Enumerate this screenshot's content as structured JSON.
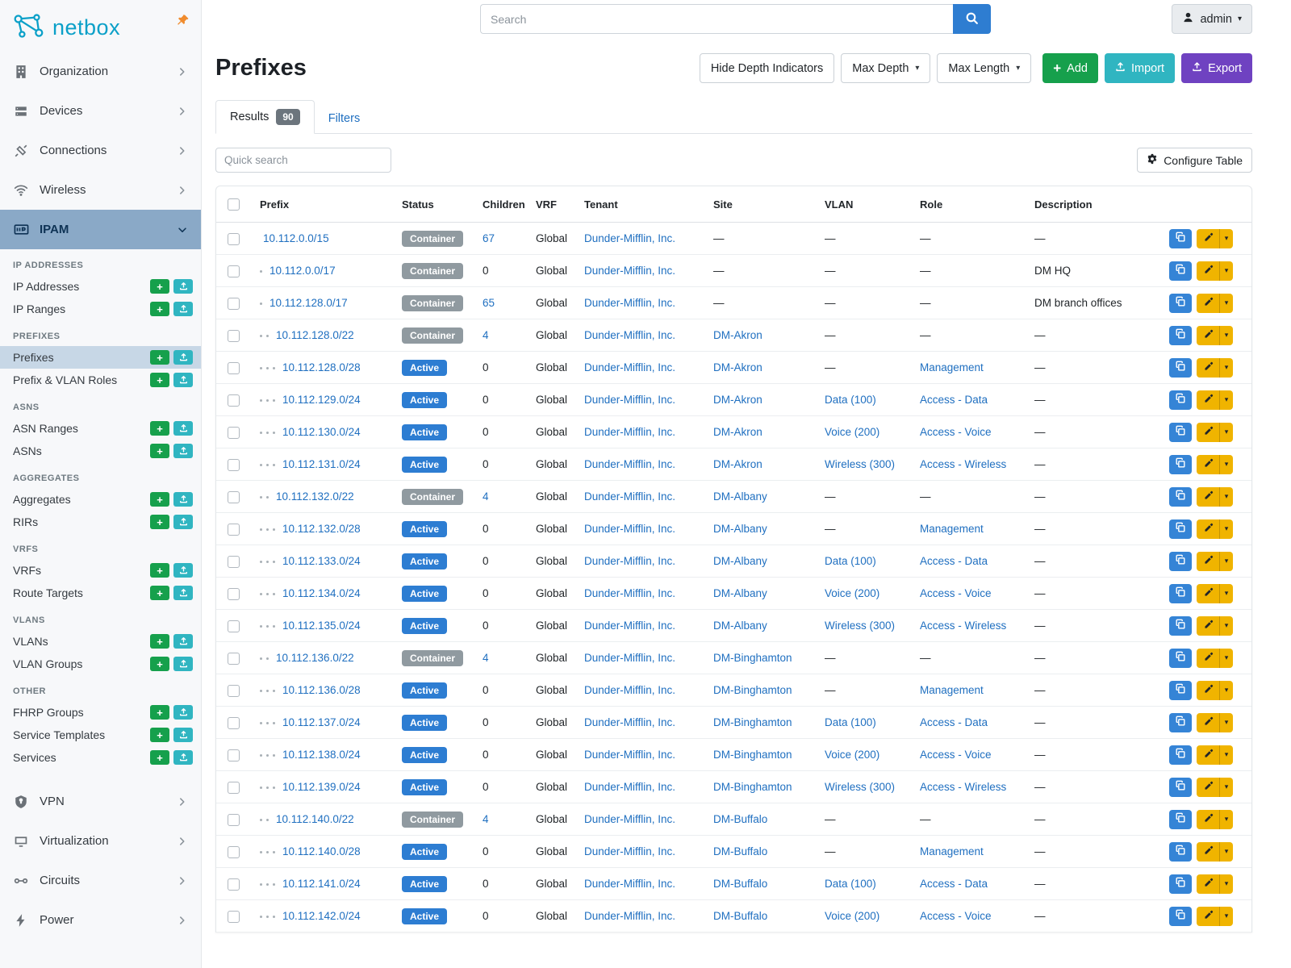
{
  "colors": {
    "brand_teal": "#0ba0c8",
    "pin_orange": "#f08c2e",
    "link_blue": "#1f6fc0",
    "search_btn_blue": "#2e7dd1",
    "status_active": "#2d7dd2",
    "status_container": "#909aa0",
    "btn_add_green": "#16a04c",
    "btn_import_teal": "#30b5c1",
    "btn_export_purple": "#6f42c1",
    "btn_copy_blue": "#3584d6",
    "btn_edit_yellow": "#f0b400",
    "sidebar_active_bg": "#8aa9c7",
    "sidebar_subactive_bg": "#c7d7e6"
  },
  "brand": {
    "name": "netbox",
    "logo_icon": "netbox-logo-icon",
    "pin_icon": "pin-icon"
  },
  "topbar": {
    "search": {
      "placeholder": "Search",
      "icon": "search-icon"
    },
    "user_menu": {
      "label": "admin",
      "icon": "user-icon"
    }
  },
  "sidebar": {
    "top_items": [
      {
        "label": "Organization",
        "icon": "building-icon"
      },
      {
        "label": "Devices",
        "icon": "devices-icon"
      },
      {
        "label": "Connections",
        "icon": "connections-icon"
      },
      {
        "label": "Wireless",
        "icon": "wireless-icon"
      }
    ],
    "active_group": {
      "label": "IPAM",
      "icon": "ipam-icon"
    },
    "sections": [
      {
        "header": "IP ADDRESSES",
        "items": [
          {
            "label": "IP Addresses"
          },
          {
            "label": "IP Ranges"
          }
        ]
      },
      {
        "header": "PREFIXES",
        "items": [
          {
            "label": "Prefixes",
            "active": true
          },
          {
            "label": "Prefix & VLAN Roles"
          }
        ]
      },
      {
        "header": "ASNS",
        "items": [
          {
            "label": "ASN Ranges"
          },
          {
            "label": "ASNs"
          }
        ]
      },
      {
        "header": "AGGREGATES",
        "items": [
          {
            "label": "Aggregates"
          },
          {
            "label": "RIRs"
          }
        ]
      },
      {
        "header": "VRFS",
        "items": [
          {
            "label": "VRFs"
          },
          {
            "label": "Route Targets"
          }
        ]
      },
      {
        "header": "VLANS",
        "items": [
          {
            "label": "VLANs"
          },
          {
            "label": "VLAN Groups"
          }
        ]
      },
      {
        "header": "OTHER",
        "items": [
          {
            "label": "FHRP Groups"
          },
          {
            "label": "Service Templates"
          },
          {
            "label": "Services"
          }
        ]
      }
    ],
    "bottom_items": [
      {
        "label": "VPN",
        "icon": "vpn-icon"
      },
      {
        "label": "Virtualization",
        "icon": "virtualization-icon"
      },
      {
        "label": "Circuits",
        "icon": "circuits-icon"
      },
      {
        "label": "Power",
        "icon": "power-icon"
      }
    ]
  },
  "page": {
    "title": "Prefixes",
    "actions": {
      "hide_depth": "Hide Depth Indicators",
      "max_depth": "Max Depth",
      "max_length": "Max Length",
      "add": "Add",
      "import": "Import",
      "export": "Export"
    },
    "tabs": {
      "results_label": "Results",
      "results_count": "90",
      "filters_label": "Filters"
    },
    "quick_search_placeholder": "Quick search",
    "configure_table_label": "Configure Table"
  },
  "table": {
    "columns": [
      "Prefix",
      "Status",
      "Children",
      "VRF",
      "Tenant",
      "Site",
      "VLAN",
      "Role",
      "Description"
    ],
    "rows": [
      {
        "depth": 0,
        "prefix": "10.112.0.0/15",
        "status": "Container",
        "children": "67",
        "vrf": "Global",
        "tenant": "Dunder-Mifflin, Inc.",
        "site": "",
        "vlan": "",
        "role": "",
        "description": ""
      },
      {
        "depth": 1,
        "prefix": "10.112.0.0/17",
        "status": "Container",
        "children": "0",
        "vrf": "Global",
        "tenant": "Dunder-Mifflin, Inc.",
        "site": "",
        "vlan": "",
        "role": "",
        "description": "DM HQ"
      },
      {
        "depth": 1,
        "prefix": "10.112.128.0/17",
        "status": "Container",
        "children": "65",
        "vrf": "Global",
        "tenant": "Dunder-Mifflin, Inc.",
        "site": "",
        "vlan": "",
        "role": "",
        "description": "DM branch offices"
      },
      {
        "depth": 2,
        "prefix": "10.112.128.0/22",
        "status": "Container",
        "children": "4",
        "vrf": "Global",
        "tenant": "Dunder-Mifflin, Inc.",
        "site": "DM-Akron",
        "vlan": "",
        "role": "",
        "description": ""
      },
      {
        "depth": 3,
        "prefix": "10.112.128.0/28",
        "status": "Active",
        "children": "0",
        "vrf": "Global",
        "tenant": "Dunder-Mifflin, Inc.",
        "site": "DM-Akron",
        "vlan": "",
        "role": "Management",
        "description": ""
      },
      {
        "depth": 3,
        "prefix": "10.112.129.0/24",
        "status": "Active",
        "children": "0",
        "vrf": "Global",
        "tenant": "Dunder-Mifflin, Inc.",
        "site": "DM-Akron",
        "vlan": "Data (100)",
        "role": "Access - Data",
        "description": ""
      },
      {
        "depth": 3,
        "prefix": "10.112.130.0/24",
        "status": "Active",
        "children": "0",
        "vrf": "Global",
        "tenant": "Dunder-Mifflin, Inc.",
        "site": "DM-Akron",
        "vlan": "Voice (200)",
        "role": "Access - Voice",
        "description": ""
      },
      {
        "depth": 3,
        "prefix": "10.112.131.0/24",
        "status": "Active",
        "children": "0",
        "vrf": "Global",
        "tenant": "Dunder-Mifflin, Inc.",
        "site": "DM-Akron",
        "vlan": "Wireless (300)",
        "role": "Access - Wireless",
        "description": ""
      },
      {
        "depth": 2,
        "prefix": "10.112.132.0/22",
        "status": "Container",
        "children": "4",
        "vrf": "Global",
        "tenant": "Dunder-Mifflin, Inc.",
        "site": "DM-Albany",
        "vlan": "",
        "role": "",
        "description": ""
      },
      {
        "depth": 3,
        "prefix": "10.112.132.0/28",
        "status": "Active",
        "children": "0",
        "vrf": "Global",
        "tenant": "Dunder-Mifflin, Inc.",
        "site": "DM-Albany",
        "vlan": "",
        "role": "Management",
        "description": ""
      },
      {
        "depth": 3,
        "prefix": "10.112.133.0/24",
        "status": "Active",
        "children": "0",
        "vrf": "Global",
        "tenant": "Dunder-Mifflin, Inc.",
        "site": "DM-Albany",
        "vlan": "Data (100)",
        "role": "Access - Data",
        "description": ""
      },
      {
        "depth": 3,
        "prefix": "10.112.134.0/24",
        "status": "Active",
        "children": "0",
        "vrf": "Global",
        "tenant": "Dunder-Mifflin, Inc.",
        "site": "DM-Albany",
        "vlan": "Voice (200)",
        "role": "Access - Voice",
        "description": ""
      },
      {
        "depth": 3,
        "prefix": "10.112.135.0/24",
        "status": "Active",
        "children": "0",
        "vrf": "Global",
        "tenant": "Dunder-Mifflin, Inc.",
        "site": "DM-Albany",
        "vlan": "Wireless (300)",
        "role": "Access - Wireless",
        "description": ""
      },
      {
        "depth": 2,
        "prefix": "10.112.136.0/22",
        "status": "Container",
        "children": "4",
        "vrf": "Global",
        "tenant": "Dunder-Mifflin, Inc.",
        "site": "DM-Binghamton",
        "vlan": "",
        "role": "",
        "description": ""
      },
      {
        "depth": 3,
        "prefix": "10.112.136.0/28",
        "status": "Active",
        "children": "0",
        "vrf": "Global",
        "tenant": "Dunder-Mifflin, Inc.",
        "site": "DM-Binghamton",
        "vlan": "",
        "role": "Management",
        "description": ""
      },
      {
        "depth": 3,
        "prefix": "10.112.137.0/24",
        "status": "Active",
        "children": "0",
        "vrf": "Global",
        "tenant": "Dunder-Mifflin, Inc.",
        "site": "DM-Binghamton",
        "vlan": "Data (100)",
        "role": "Access - Data",
        "description": ""
      },
      {
        "depth": 3,
        "prefix": "10.112.138.0/24",
        "status": "Active",
        "children": "0",
        "vrf": "Global",
        "tenant": "Dunder-Mifflin, Inc.",
        "site": "DM-Binghamton",
        "vlan": "Voice (200)",
        "role": "Access - Voice",
        "description": ""
      },
      {
        "depth": 3,
        "prefix": "10.112.139.0/24",
        "status": "Active",
        "children": "0",
        "vrf": "Global",
        "tenant": "Dunder-Mifflin, Inc.",
        "site": "DM-Binghamton",
        "vlan": "Wireless (300)",
        "role": "Access - Wireless",
        "description": ""
      },
      {
        "depth": 2,
        "prefix": "10.112.140.0/22",
        "status": "Container",
        "children": "4",
        "vrf": "Global",
        "tenant": "Dunder-Mifflin, Inc.",
        "site": "DM-Buffalo",
        "vlan": "",
        "role": "",
        "description": ""
      },
      {
        "depth": 3,
        "prefix": "10.112.140.0/28",
        "status": "Active",
        "children": "0",
        "vrf": "Global",
        "tenant": "Dunder-Mifflin, Inc.",
        "site": "DM-Buffalo",
        "vlan": "",
        "role": "Management",
        "description": ""
      },
      {
        "depth": 3,
        "prefix": "10.112.141.0/24",
        "status": "Active",
        "children": "0",
        "vrf": "Global",
        "tenant": "Dunder-Mifflin, Inc.",
        "site": "DM-Buffalo",
        "vlan": "Data (100)",
        "role": "Access - Data",
        "description": ""
      },
      {
        "depth": 3,
        "prefix": "10.112.142.0/24",
        "status": "Active",
        "children": "0",
        "vrf": "Global",
        "tenant": "Dunder-Mifflin, Inc.",
        "site": "DM-Buffalo",
        "vlan": "Voice (200)",
        "role": "Access - Voice",
        "description": ""
      }
    ]
  }
}
